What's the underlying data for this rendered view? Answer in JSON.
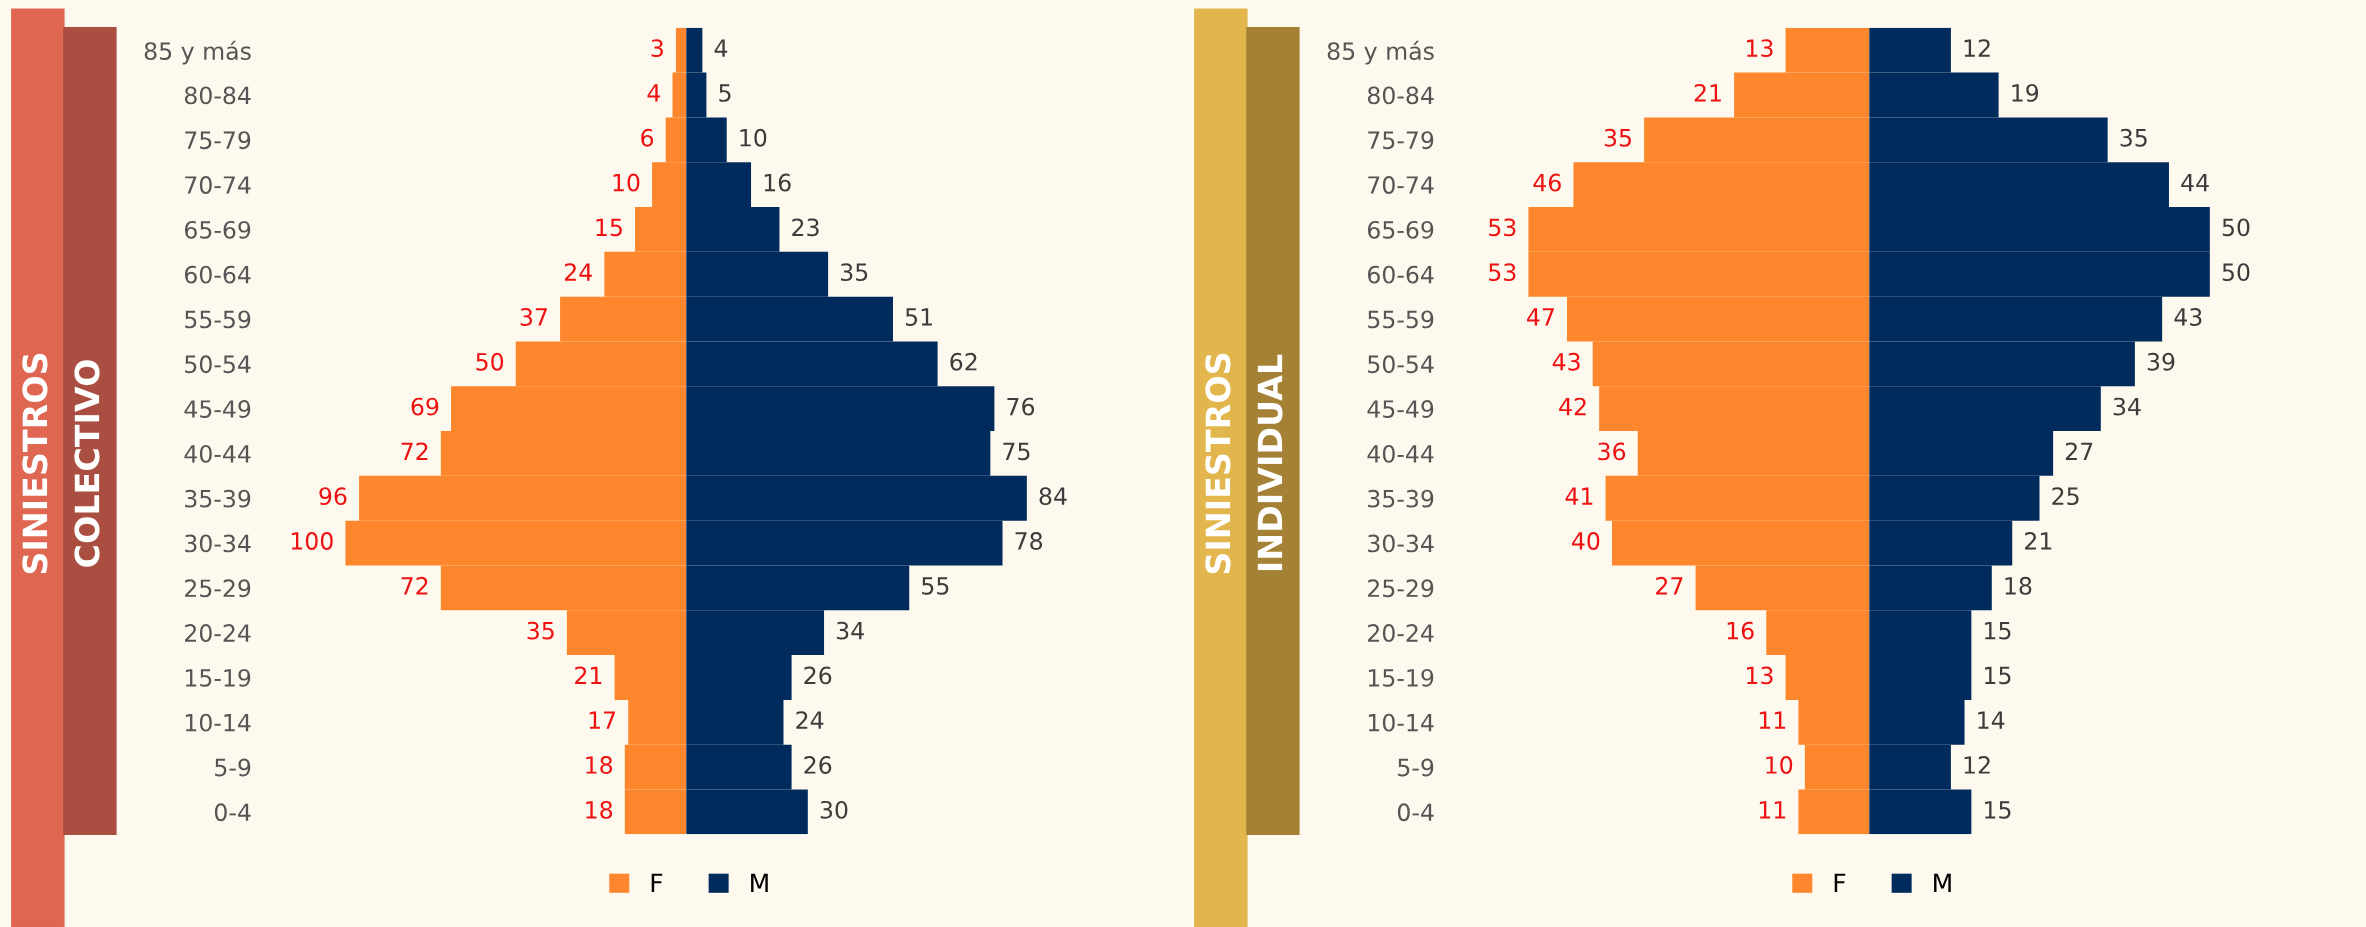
{
  "chart_data": [
    {
      "type": "bar",
      "orientation": "horizontal",
      "annotations": [
        "SINIESTROS",
        "COLECTIVO"
      ],
      "tick_labels": "y",
      "categories": [
        "85 y más",
        "80-84",
        "75-79",
        "70-74",
        "65-69",
        "60-64",
        "55-59",
        "50-54",
        "45-49",
        "40-44",
        "35-39",
        "30-34",
        "25-29",
        "20-24",
        "15-19",
        "10-14",
        "5-9",
        "0-4"
      ],
      "series": [
        {
          "name": "F",
          "color": "#fe862d",
          "values": [
            3,
            4,
            6,
            10,
            15,
            24,
            37,
            50,
            69,
            72,
            96,
            100,
            72,
            35,
            21,
            17,
            18,
            18
          ]
        }
      ],
      "data_labels": true,
      "legend": "bottom"
    },
    {
      "type": "bar",
      "orientation": "horizontal",
      "tick_labels": false,
      "categories": [
        null,
        null,
        null,
        null,
        null,
        null,
        null,
        null,
        null,
        null,
        null,
        null,
        null,
        null,
        null,
        null,
        null,
        null
      ],
      "series": [
        {
          "name": "M",
          "color": "#002b5c",
          "values": [
            4,
            5,
            10,
            16,
            23,
            35,
            51,
            62,
            76,
            75,
            84,
            78,
            55,
            34,
            26,
            24,
            26,
            30
          ]
        }
      ],
      "data_labels": true,
      "legend": "bottom"
    },
    {
      "type": "bar",
      "orientation": "horizontal",
      "annotations": [
        "SINIESTROS",
        "INDIVIDUAL"
      ],
      "tick_labels": "y",
      "categories": [
        "85 y más",
        "80-84",
        "75-79",
        "70-74",
        "65-69",
        "60-64",
        "55-59",
        "50-54",
        "45-49",
        "40-44",
        "35-39",
        "30-34",
        "25-29",
        "20-24",
        "15-19",
        "10-14",
        "5-9",
        "0-4"
      ],
      "series": [
        {
          "name": "F",
          "color": "#fe862d",
          "values": [
            13,
            21,
            35,
            46,
            53,
            53,
            47,
            43,
            42,
            36,
            41,
            40,
            27,
            16,
            13,
            11,
            10,
            11
          ]
        }
      ],
      "data_labels": true,
      "legend": "bottom"
    },
    {
      "type": "bar",
      "orientation": "horizontal",
      "tick_labels": false,
      "categories": [
        null,
        null,
        null,
        null,
        null,
        null,
        null,
        null,
        null,
        null,
        null,
        null,
        null,
        null,
        null,
        null,
        null,
        null
      ],
      "series": [
        {
          "name": "M",
          "color": "#002b5c",
          "values": [
            12,
            19,
            35,
            44,
            50,
            50,
            43,
            39,
            34,
            27,
            25,
            21,
            18,
            15,
            15,
            14,
            12,
            15
          ]
        }
      ],
      "data_labels": true,
      "legend": "bottom"
    }
  ]
}
